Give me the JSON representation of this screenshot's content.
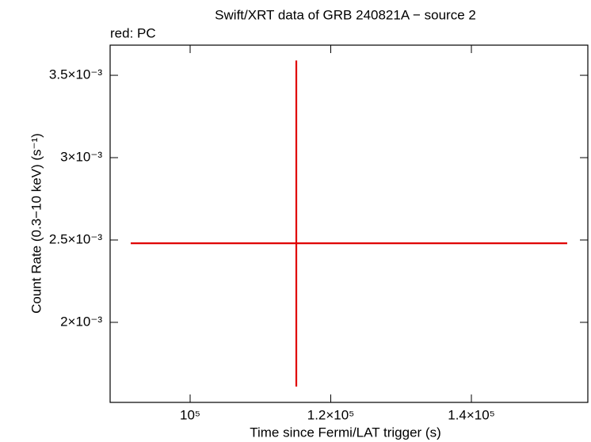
{
  "chart_data": {
    "type": "errorbar",
    "title": "Swift/XRT data of GRB 240821A − source 2",
    "subtitle": "red: PC",
    "x_label": "Time since Fermi/LAT trigger (s)",
    "y_label": "Count Rate (0.3−10 keV) (s⁻¹)",
    "series": [
      {
        "name": "PC",
        "color": "#e00000",
        "x": [
          115100
        ],
        "xerr_minus": [
          23550
        ],
        "xerr_plus": [
          38530
        ],
        "values": [
          0.00248
        ],
        "yerr_minus": [
          0.00087
        ],
        "yerr_plus": [
          0.00111
        ]
      }
    ],
    "xlim": [
      88620,
      156560
    ],
    "xticks": [
      {
        "value": 100000,
        "label": "10⁵"
      },
      {
        "value": 120000,
        "label": "1.2×10⁵"
      },
      {
        "value": 140000,
        "label": "1.4×10⁵"
      }
    ],
    "ylim": [
      0.001514,
      0.003683
    ],
    "yticks": [
      {
        "value": 0.002,
        "label": "2×10⁻³"
      },
      {
        "value": 0.0025,
        "label": "2.5×10⁻³"
      },
      {
        "value": 0.003,
        "label": "3×10⁻³"
      },
      {
        "value": 0.0035,
        "label": "3.5×10⁻³"
      }
    ]
  }
}
